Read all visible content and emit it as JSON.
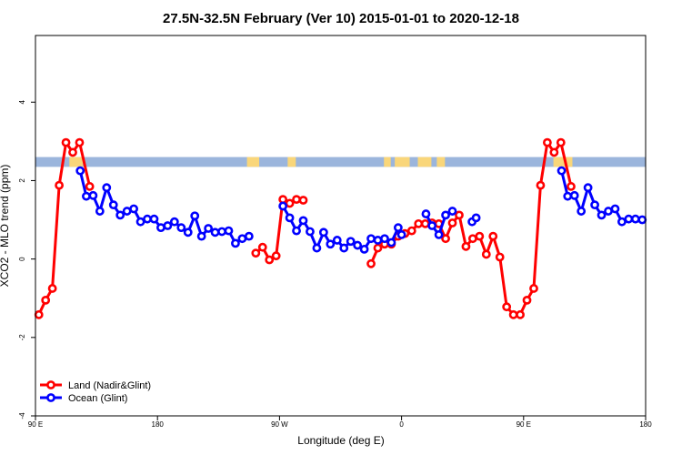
{
  "chart_data": {
    "type": "line",
    "title": "27.5N-32.5N February (Ver 10)   2015-01-01 to 2020-12-18",
    "xlabel": "Longitude (deg E)",
    "ylabel": "XCO2 - MLO trend (ppm)",
    "xlim": [
      90,
      540
    ],
    "ylim": [
      -4,
      5.7
    ],
    "x_ticks": [
      {
        "value": 90,
        "label": "90 E"
      },
      {
        "value": 180,
        "label": "180"
      },
      {
        "value": 270,
        "label": "90 W"
      },
      {
        "value": 360,
        "label": "0"
      },
      {
        "value": 450,
        "label": "90 E"
      },
      {
        "value": 540,
        "label": "180"
      }
    ],
    "y_ticks": [
      {
        "value": -4,
        "label": "-4"
      },
      {
        "value": -2,
        "label": "-2"
      },
      {
        "value": 0,
        "label": "0"
      },
      {
        "value": 2,
        "label": "2"
      },
      {
        "value": 4,
        "label": "4"
      }
    ],
    "grid": false,
    "legend": {
      "position": "bottom-left"
    },
    "map_strip": {
      "y_range": [
        2.35,
        2.6
      ],
      "ocean_color": "#9bb5dc",
      "land_color": "#f9d67a",
      "land_spans": [
        [
          115,
          125
        ],
        [
          246,
          255
        ],
        [
          276,
          282
        ],
        [
          347,
          352
        ],
        [
          355,
          366
        ],
        [
          372,
          382
        ],
        [
          386,
          392
        ],
        [
          472,
          486
        ]
      ]
    },
    "series": [
      {
        "name": "Land (Nadir&Glint)",
        "color": "#ff0000",
        "segments": [
          [
            [
              92.5,
              -1.42
            ],
            [
              97.5,
              -1.05
            ],
            [
              102.5,
              -0.75
            ],
            [
              107.5,
              1.88
            ],
            [
              112.5,
              2.97
            ],
            [
              117.5,
              2.72
            ],
            [
              122.5,
              2.97
            ],
            [
              130,
              1.85
            ]
          ],
          [
            [
              252.5,
              0.15
            ],
            [
              257.5,
              0.3
            ],
            [
              262.5,
              -0.02
            ],
            [
              267.5,
              0.08
            ],
            [
              272.5,
              1.52
            ],
            [
              277.5,
              1.42
            ],
            [
              282.5,
              1.52
            ],
            [
              287.5,
              1.5
            ]
          ],
          [
            [
              337.5,
              -0.12
            ],
            [
              342.5,
              0.28
            ],
            [
              347.5,
              0.38
            ],
            [
              352.5,
              0.38
            ],
            [
              357.5,
              0.58
            ],
            [
              362.5,
              0.65
            ],
            [
              367.5,
              0.72
            ],
            [
              372.5,
              0.9
            ],
            [
              377.5,
              0.9
            ],
            [
              382.5,
              0.92
            ],
            [
              387.5,
              0.9
            ],
            [
              392.5,
              0.52
            ],
            [
              397.5,
              0.92
            ],
            [
              402.5,
              1.12
            ],
            [
              407.5,
              0.32
            ],
            [
              412.5,
              0.52
            ],
            [
              417.5,
              0.58
            ],
            [
              422.5,
              0.12
            ],
            [
              427.5,
              0.58
            ],
            [
              432.5,
              0.05
            ],
            [
              437.5,
              -1.22
            ],
            [
              442.5,
              -1.42
            ],
            [
              447.5,
              -1.42
            ],
            [
              452.5,
              -1.05
            ],
            [
              457.5,
              -0.75
            ],
            [
              462.5,
              1.88
            ],
            [
              467.5,
              2.97
            ],
            [
              472.5,
              2.72
            ],
            [
              477.5,
              2.97
            ],
            [
              485,
              1.85
            ]
          ]
        ]
      },
      {
        "name": "Ocean (Glint)",
        "color": "#0000ff",
        "segments": [
          [
            [
              123,
              2.25
            ],
            [
              127.5,
              1.6
            ],
            [
              132.5,
              1.62
            ],
            [
              137.5,
              1.22
            ],
            [
              142.5,
              1.82
            ],
            [
              147.5,
              1.38
            ],
            [
              152.5,
              1.12
            ],
            [
              157.5,
              1.22
            ],
            [
              162.5,
              1.28
            ],
            [
              167.5,
              0.95
            ],
            [
              172.5,
              1.02
            ],
            [
              177.5,
              1.02
            ],
            [
              182.5,
              0.8
            ],
            [
              187.5,
              0.85
            ],
            [
              192.5,
              0.95
            ],
            [
              197.5,
              0.8
            ],
            [
              202.5,
              0.68
            ],
            [
              207.5,
              1.1
            ],
            [
              212.5,
              0.58
            ],
            [
              217.5,
              0.78
            ],
            [
              222.5,
              0.68
            ],
            [
              227.5,
              0.7
            ],
            [
              232.5,
              0.72
            ],
            [
              237.5,
              0.4
            ],
            [
              242.5,
              0.52
            ],
            [
              247.5,
              0.58
            ]
          ],
          [
            [
              272.5,
              1.35
            ],
            [
              277.5,
              1.05
            ],
            [
              282.5,
              0.72
            ],
            [
              287.5,
              0.98
            ],
            [
              292.5,
              0.7
            ],
            [
              297.5,
              0.28
            ],
            [
              302.5,
              0.68
            ],
            [
              307.5,
              0.38
            ],
            [
              312.5,
              0.48
            ],
            [
              317.5,
              0.28
            ],
            [
              322.5,
              0.45
            ],
            [
              327.5,
              0.35
            ],
            [
              332.5,
              0.25
            ],
            [
              337.5,
              0.52
            ],
            [
              342.5,
              0.48
            ],
            [
              347.5,
              0.52
            ],
            [
              352.5,
              0.42
            ],
            [
              357.5,
              0.8
            ],
            [
              360,
              0.62
            ]
          ],
          [
            [
              378,
              1.15
            ],
            [
              382.5,
              0.85
            ],
            [
              387.5,
              0.62
            ],
            [
              392.5,
              1.12
            ],
            [
              397.5,
              1.22
            ]
          ],
          [
            [
              412,
              0.95
            ],
            [
              415,
              1.05
            ]
          ],
          [
            [
              478,
              2.25
            ],
            [
              482.5,
              1.6
            ],
            [
              487.5,
              1.62
            ],
            [
              492.5,
              1.22
            ],
            [
              497.5,
              1.82
            ],
            [
              502.5,
              1.38
            ],
            [
              507.5,
              1.12
            ],
            [
              512.5,
              1.22
            ],
            [
              517.5,
              1.28
            ],
            [
              522.5,
              0.95
            ],
            [
              527.5,
              1.02
            ],
            [
              532.5,
              1.02
            ],
            [
              537.5,
              1.0
            ]
          ]
        ]
      }
    ]
  }
}
